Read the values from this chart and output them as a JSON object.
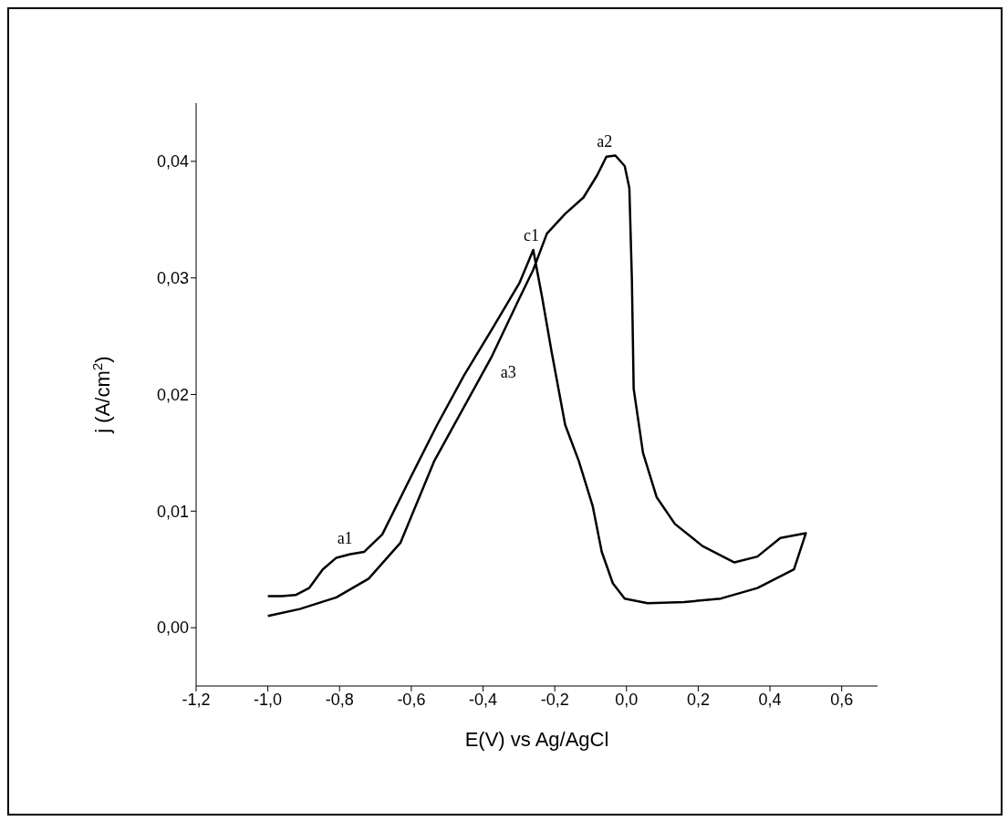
{
  "chart_data": {
    "type": "line",
    "xlabel": "E(V) vs Ag/AgCl",
    "ylabel": "j (A/cm$^{2}$)",
    "series": [
      {
        "color": "#000000",
        "x": [
          -1.0,
          -0.911,
          -0.809,
          -0.719,
          -0.63,
          -0.536,
          -0.452,
          -0.375,
          -0.298,
          -0.26,
          -0.222,
          -0.171,
          -0.12,
          -0.082,
          -0.056,
          -0.031,
          -0.005,
          0.008,
          0.015,
          0.02,
          0.046,
          0.084,
          0.135,
          0.212,
          0.301,
          0.365,
          0.429,
          0.5,
          0.467,
          0.365,
          0.263,
          0.161,
          0.059,
          -0.005,
          -0.038,
          -0.069,
          -0.094,
          -0.133,
          -0.171,
          -0.209,
          -0.235,
          -0.26,
          -0.298,
          -0.375,
          -0.452,
          -0.528,
          -0.605,
          -0.681,
          -0.732,
          -0.77,
          -0.809,
          -0.847,
          -0.885,
          -0.923,
          -0.962,
          -1.0
        ],
        "values": [
          0.001,
          0.0016,
          0.0026,
          0.0042,
          0.0073,
          0.0143,
          0.019,
          0.0233,
          0.0283,
          0.0307,
          0.0338,
          0.0355,
          0.0369,
          0.0388,
          0.0404,
          0.0405,
          0.0396,
          0.0377,
          0.0299,
          0.0205,
          0.015,
          0.0112,
          0.0089,
          0.007,
          0.0056,
          0.0061,
          0.0077,
          0.0081,
          0.005,
          0.0034,
          0.0025,
          0.0022,
          0.0021,
          0.0025,
          0.0038,
          0.0065,
          0.0104,
          0.0143,
          0.0174,
          0.0237,
          0.0283,
          0.0324,
          0.0296,
          0.0256,
          0.0217,
          0.0174,
          0.0127,
          0.008,
          0.0065,
          0.0063,
          0.006,
          0.005,
          0.0034,
          0.0028,
          0.0027,
          0.0027
        ]
      }
    ],
    "xlim": [
      -1.2,
      0.7
    ],
    "xticks": [
      {
        "value": -1.2,
        "label": "-1,2"
      },
      {
        "value": -1.0,
        "label": "-1,0"
      },
      {
        "value": -0.8,
        "label": "-0,8"
      },
      {
        "value": -0.6,
        "label": "-0,6"
      },
      {
        "value": -0.4,
        "label": "-0,4"
      },
      {
        "value": -0.2,
        "label": "-0,2"
      },
      {
        "value": 0.0,
        "label": "0,0"
      },
      {
        "value": 0.2,
        "label": "0,2"
      },
      {
        "value": 0.4,
        "label": "0,4"
      },
      {
        "value": 0.6,
        "label": "0,6"
      }
    ],
    "ylim": [
      -0.005,
      0.045
    ],
    "yticks": [
      {
        "value": 0.0,
        "label": "0,00"
      },
      {
        "value": 0.01,
        "label": "0,01"
      },
      {
        "value": 0.02,
        "label": "0,02"
      },
      {
        "value": 0.03,
        "label": "0,03"
      },
      {
        "value": 0.04,
        "label": "0,04"
      }
    ],
    "grid": false,
    "marker": "none",
    "line_style": "solid",
    "annotations": [
      {
        "text": "a1",
        "x": -0.78,
        "y": 0.0064
      },
      {
        "text": "a2",
        "x": -0.056,
        "y": 0.0405
      },
      {
        "text": "c1",
        "x": -0.26,
        "y": 0.0324
      },
      {
        "text": "a3",
        "x": -0.375,
        "y": 0.0233
      }
    ]
  }
}
